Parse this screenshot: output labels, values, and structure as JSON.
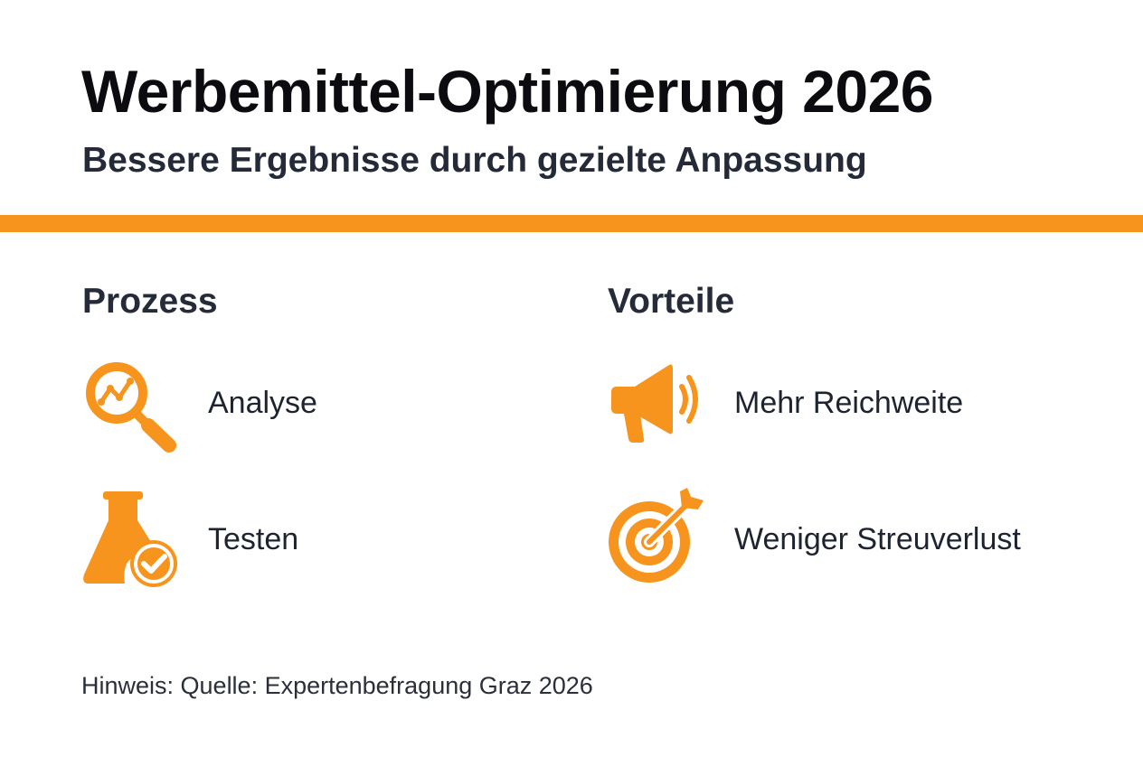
{
  "header": {
    "title": "Werbemittel-Optimierung 2026",
    "subtitle": "Bessere Ergebnisse durch gezielte Anpassung"
  },
  "colors": {
    "accent": "#f7941d",
    "title": "#0c0c10",
    "text": "#222936"
  },
  "columns": {
    "left": {
      "heading": "Prozess",
      "items": [
        {
          "label": "Analyse",
          "icon": "magnifier-chart-icon"
        },
        {
          "label": "Testen",
          "icon": "flask-check-icon"
        }
      ]
    },
    "right": {
      "heading": "Vorteile",
      "items": [
        {
          "label": "Mehr Reichweite",
          "icon": "megaphone-icon"
        },
        {
          "label": "Weniger Streuverlust",
          "icon": "target-arrow-icon"
        }
      ]
    }
  },
  "footer": {
    "note": "Hinweis: Quelle: Expertenbefragung Graz 2026"
  }
}
